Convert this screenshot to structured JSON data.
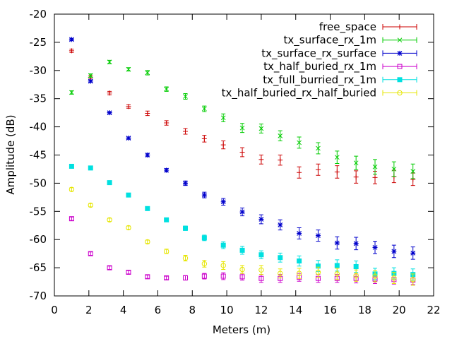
{
  "chart_data": {
    "type": "scatter",
    "title": "",
    "xlabel": "Meters (m)",
    "ylabel": "Amplitude (dB)",
    "xlim": [
      0,
      22
    ],
    "ylim": [
      -70,
      -20
    ],
    "xticks": [
      0,
      2,
      4,
      6,
      8,
      10,
      12,
      14,
      16,
      18,
      20,
      22
    ],
    "yticks": [
      -70,
      -65,
      -60,
      -55,
      -50,
      -45,
      -40,
      -35,
      -30,
      -25,
      -20
    ],
    "legend_position": "top-right",
    "errorbars": true,
    "x": [
      1.0,
      2.1,
      3.2,
      4.3,
      5.4,
      6.5,
      7.6,
      8.7,
      9.8,
      10.9,
      12.0,
      13.1,
      14.2,
      15.3,
      16.4,
      17.5,
      18.6,
      19.7,
      20.8
    ],
    "series": [
      {
        "name": "free_space",
        "marker": "plus",
        "color": "#cc0000",
        "values": [
          -26.5,
          -31.2,
          -34.0,
          -36.4,
          -37.6,
          -39.3,
          -40.8,
          -42.1,
          -43.2,
          -44.5,
          -45.8,
          -45.9,
          -48.1,
          -47.6,
          -48.0,
          -48.9,
          -49.0,
          -48.8,
          -49.3
        ],
        "errors": [
          0.3,
          0.3,
          0.3,
          0.3,
          0.4,
          0.4,
          0.5,
          0.6,
          0.7,
          0.8,
          0.8,
          0.9,
          1.0,
          1.0,
          1.1,
          1.1,
          1.1,
          1.1,
          1.1
        ]
      },
      {
        "name": "tx_surface_rx_1m",
        "marker": "x",
        "color": "#00cc00",
        "values": [
          -33.9,
          -30.9,
          -28.5,
          -29.8,
          -30.4,
          -33.3,
          -34.6,
          -36.8,
          -38.4,
          -40.2,
          -40.3,
          -41.6,
          -42.8,
          -43.8,
          -45.4,
          -46.4,
          -47.1,
          -47.5,
          -47.9
        ],
        "errors": [
          0.3,
          0.3,
          0.3,
          0.3,
          0.4,
          0.4,
          0.5,
          0.5,
          0.7,
          0.8,
          0.8,
          0.9,
          1.0,
          1.0,
          1.1,
          1.2,
          1.3,
          1.3,
          1.3
        ]
      },
      {
        "name": "tx_surface_rx_surface",
        "marker": "star",
        "color": "#0000cc",
        "values": [
          -24.5,
          -31.9,
          -37.5,
          -42.0,
          -45.0,
          -47.7,
          -50.0,
          -52.1,
          -53.3,
          -55.1,
          -56.4,
          -57.4,
          -58.9,
          -59.3,
          -60.6,
          -60.7,
          -61.4,
          -62.1,
          -62.4
        ],
        "errors": [
          0.2,
          0.2,
          0.2,
          0.2,
          0.3,
          0.3,
          0.4,
          0.5,
          0.6,
          0.7,
          0.8,
          0.9,
          1.0,
          1.0,
          1.1,
          1.1,
          1.1,
          1.1,
          1.1
        ]
      },
      {
        "name": "tx_half_buried_rx_1m",
        "marker": "open-square",
        "color": "#cc00cc",
        "values": [
          -56.3,
          -62.5,
          -65.0,
          -65.8,
          -66.6,
          -66.8,
          -66.8,
          -66.5,
          -66.5,
          -66.6,
          -66.9,
          -66.9,
          -66.7,
          -66.9,
          -66.9,
          -66.9,
          -67.0,
          -67.1,
          -67.2
        ],
        "errors": [
          0.3,
          0.3,
          0.3,
          0.3,
          0.3,
          0.3,
          0.4,
          0.5,
          0.6,
          0.6,
          0.7,
          0.7,
          0.7,
          0.7,
          0.7,
          0.8,
          0.8,
          0.8,
          0.8
        ]
      },
      {
        "name": "tx_full_burried_rx_1m",
        "marker": "filled-square",
        "color": "#00e0e0",
        "values": [
          -47.0,
          -47.3,
          -49.9,
          -52.1,
          -54.5,
          -56.5,
          -58.0,
          -59.7,
          -61.0,
          -61.9,
          -62.7,
          -63.2,
          -63.8,
          -64.7,
          -64.6,
          -64.8,
          -66.1,
          -66.0,
          -66.2
        ],
        "errors": [
          0.3,
          0.3,
          0.3,
          0.3,
          0.3,
          0.3,
          0.4,
          0.5,
          0.6,
          0.7,
          0.7,
          0.8,
          0.9,
          1.0,
          1.0,
          1.0,
          1.0,
          1.0,
          1.0
        ]
      },
      {
        "name": "tx_half_buried_rx_half_buried",
        "marker": "open-circle",
        "color": "#e6e600",
        "values": [
          -51.1,
          -53.9,
          -56.5,
          -57.9,
          -60.4,
          -62.1,
          -63.3,
          -64.3,
          -64.6,
          -65.3,
          -65.4,
          -66.0,
          -66.0,
          -65.8,
          -66.1,
          -66.4,
          -66.5,
          -66.8,
          -67.1
        ],
        "errors": [
          0.3,
          0.3,
          0.3,
          0.3,
          0.3,
          0.4,
          0.5,
          0.6,
          0.7,
          0.7,
          0.8,
          0.8,
          0.9,
          0.9,
          1.0,
          1.0,
          1.0,
          1.0,
          1.0
        ]
      }
    ]
  }
}
